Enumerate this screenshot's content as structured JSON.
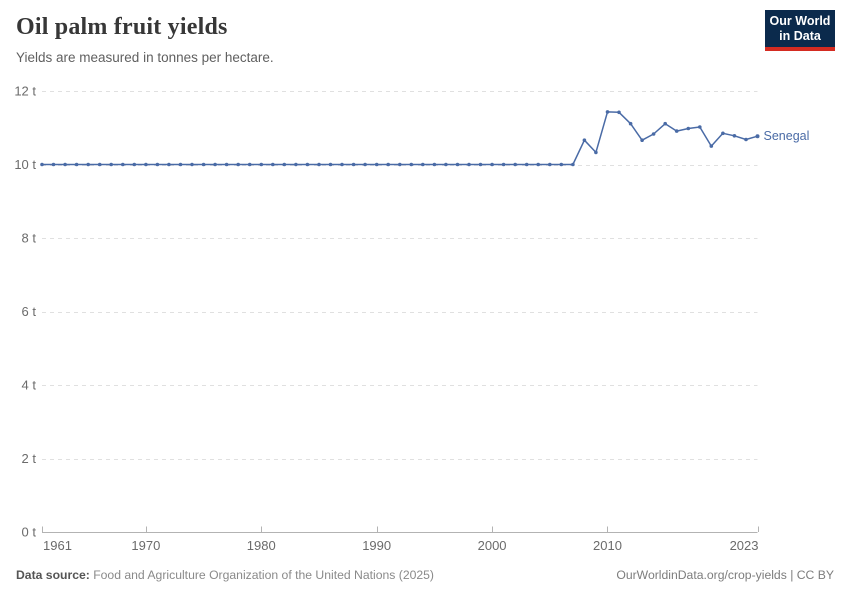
{
  "header": {
    "title": "Oil palm fruit yields",
    "subtitle": "Yields are measured in tonnes per hectare.",
    "logo": {
      "line1": "Our World",
      "line2": "in Data",
      "bg_color": "#0b2a4c",
      "accent_color": "#d42b21"
    }
  },
  "chart_data": {
    "type": "line",
    "title": "Oil palm fruit yields",
    "subtitle": "Yields are measured in tonnes per hectare.",
    "unit": "tonnes per hectare",
    "xlim": [
      1961,
      2023
    ],
    "ylim": [
      0,
      12
    ],
    "grid": "dashed-horizontal",
    "legend_position": "end-of-line-label",
    "x": [
      1961,
      1962,
      1963,
      1964,
      1965,
      1966,
      1967,
      1968,
      1969,
      1970,
      1971,
      1972,
      1973,
      1974,
      1975,
      1976,
      1977,
      1978,
      1979,
      1980,
      1981,
      1982,
      1983,
      1984,
      1985,
      1986,
      1987,
      1988,
      1989,
      1990,
      1991,
      1992,
      1993,
      1994,
      1995,
      1996,
      1997,
      1998,
      1999,
      2000,
      2001,
      2002,
      2003,
      2004,
      2005,
      2006,
      2007,
      2008,
      2009,
      2010,
      2011,
      2012,
      2013,
      2014,
      2015,
      2016,
      2017,
      2018,
      2019,
      2020,
      2021,
      2022,
      2023
    ],
    "series": [
      {
        "name": "Senegal",
        "color": "#4a6ba6",
        "values": [
          10,
          10,
          10,
          10,
          10,
          10,
          10,
          10,
          10,
          10,
          10,
          10,
          10,
          10,
          10,
          10,
          10,
          10,
          10,
          10,
          10,
          10,
          10,
          10,
          10,
          10,
          10,
          10,
          10,
          10,
          10,
          10,
          10,
          10,
          10,
          10,
          10,
          10,
          10,
          10,
          10,
          10,
          10,
          10,
          10,
          10,
          10,
          10.66,
          10.33,
          11.43,
          11.42,
          11.11,
          10.66,
          10.83,
          11.11,
          10.91,
          10.98,
          11.02,
          10.5,
          10.85,
          10.78,
          10.68,
          10.77
        ]
      }
    ],
    "yticks": [
      {
        "value": 0,
        "label": "0 t"
      },
      {
        "value": 2,
        "label": "2 t"
      },
      {
        "value": 4,
        "label": "4 t"
      },
      {
        "value": 6,
        "label": "6 t"
      },
      {
        "value": 8,
        "label": "8 t"
      },
      {
        "value": 10,
        "label": "10 t"
      },
      {
        "value": 12,
        "label": "12 t"
      }
    ],
    "xticks": [
      {
        "value": 1961,
        "label": "1961"
      },
      {
        "value": 1970,
        "label": "1970"
      },
      {
        "value": 1980,
        "label": "1980"
      },
      {
        "value": 1990,
        "label": "1990"
      },
      {
        "value": 2000,
        "label": "2000"
      },
      {
        "value": 2010,
        "label": "2010"
      },
      {
        "value": 2023,
        "label": "2023"
      }
    ]
  },
  "footer": {
    "source_label": "Data source:",
    "source_text": " Food and Agriculture Organization of the United Nations (2025)",
    "credit": "OurWorldinData.org/crop-yields | CC BY"
  }
}
